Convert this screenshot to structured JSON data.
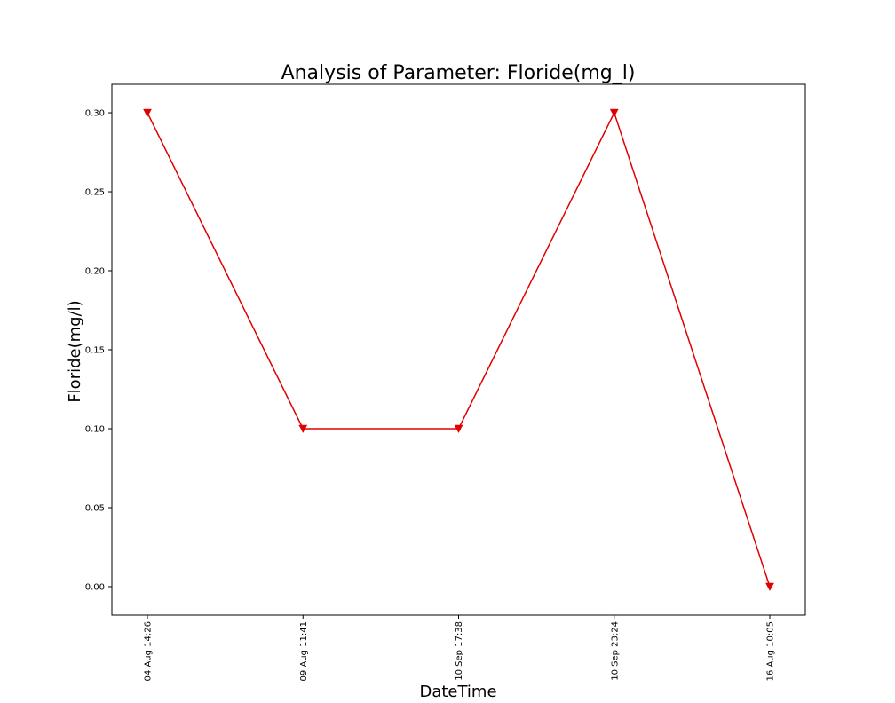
{
  "chart_data": {
    "type": "line",
    "title": "Analysis of Parameter: Floride(mg_l)",
    "xlabel": "DateTime",
    "ylabel": "Floride(mg/l)",
    "categories": [
      "04 Aug 14:26",
      "09 Aug 11:41",
      "10 Sep 17:38",
      "10 Sep 23:24",
      "16 Aug 10:05"
    ],
    "series": [
      {
        "values": [
          0.3,
          0.1,
          0.1,
          0.3,
          0.0
        ],
        "color": "#e00000",
        "marker": "triangle-down"
      }
    ],
    "ylim": [
      -0.018,
      0.318
    ],
    "yticks": [
      0.0,
      0.05,
      0.1,
      0.15,
      0.2,
      0.25,
      0.3
    ],
    "ytick_labels": [
      "0.00",
      "0.05",
      "0.10",
      "0.15",
      "0.20",
      "0.25",
      "0.30"
    ],
    "grid": false,
    "legend": "none"
  }
}
